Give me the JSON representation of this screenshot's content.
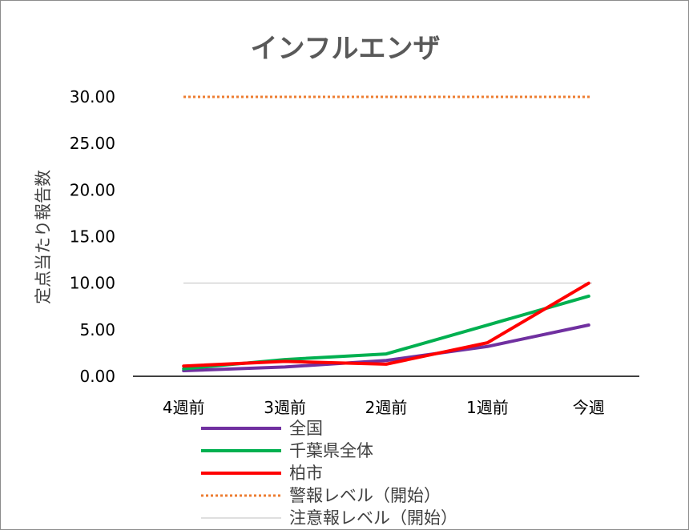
{
  "chart_data": {
    "type": "line",
    "title": "インフルエンザ",
    "xlabel": "",
    "ylabel": "定点当たり報告数",
    "categories": [
      "4週前",
      "3週前",
      "2週前",
      "1週前",
      "今週"
    ],
    "ylim": [
      0,
      30
    ],
    "yticks": [
      "0.00",
      "5.00",
      "10.00",
      "15.00",
      "20.00",
      "25.00",
      "30.00"
    ],
    "grid": false,
    "legend_position": "bottom",
    "series": [
      {
        "name": "全国",
        "values": [
          0.6,
          1.0,
          1.7,
          3.2,
          5.5
        ],
        "color": "#7030a0",
        "style": "solid"
      },
      {
        "name": "千葉県全体",
        "values": [
          0.8,
          1.8,
          2.4,
          5.5,
          8.6
        ],
        "color": "#00b050",
        "style": "solid"
      },
      {
        "name": "柏市",
        "values": [
          1.1,
          1.6,
          1.3,
          3.6,
          10.0
        ],
        "color": "#ff0000",
        "style": "solid"
      }
    ],
    "reference_lines": [
      {
        "name": "警報レベル（開始）",
        "value": 30,
        "color": "#ed7d31",
        "style": "dotted"
      },
      {
        "name": "注意報レベル（開始）",
        "value": 10,
        "color": "#bfbfbf",
        "style": "thin"
      }
    ]
  }
}
